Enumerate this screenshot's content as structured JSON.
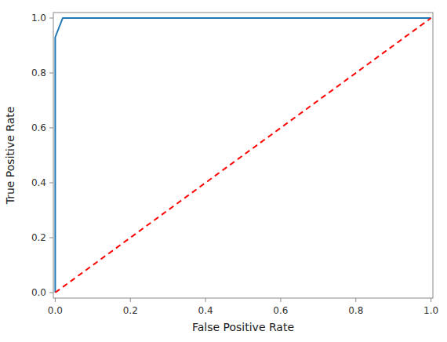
{
  "chart_data": {
    "type": "line",
    "xlabel": "False Positive Rate",
    "ylabel": "True Positive Rate",
    "series": [
      {
        "x": [
          0.0,
          0.0,
          0.02,
          1.0
        ],
        "values": [
          0.0,
          0.93,
          1.0,
          1.0
        ],
        "color": "#1f77b4",
        "line_style": "solid"
      },
      {
        "x": [
          0.0,
          1.0
        ],
        "values": [
          0.0,
          1.0
        ],
        "color": "#ff0000",
        "line_style": "dashed"
      }
    ],
    "xlim": [
      -0.005,
      1.005
    ],
    "ylim": [
      -0.02,
      1.02
    ],
    "xticks": [
      {
        "value": 0.0,
        "label": "0.0"
      },
      0.2,
      0.4,
      0.6,
      0.8,
      {
        "value": 1.0,
        "label": "1.0"
      }
    ],
    "yticks": [
      {
        "value": 0.0,
        "label": "0.0"
      },
      0.2,
      0.4,
      0.6,
      0.8,
      {
        "value": 1.0,
        "label": "1.0"
      }
    ],
    "grid": false
  }
}
